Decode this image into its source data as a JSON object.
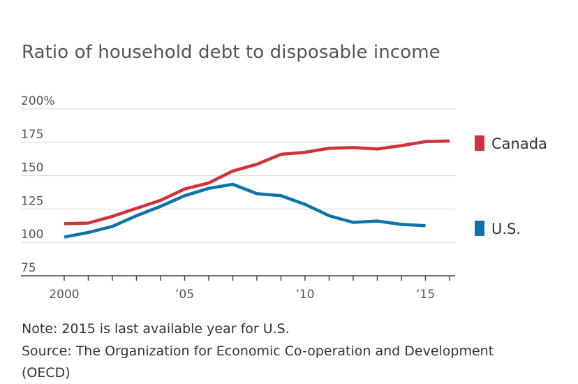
{
  "chart_data": {
    "type": "line",
    "title": "Ratio of household debt to disposable income",
    "xlabel": "",
    "ylabel": "",
    "xlim": [
      2000,
      2016
    ],
    "ylim": [
      75,
      200
    ],
    "y_ticks": [
      {
        "value": 200,
        "label": "200%"
      },
      {
        "value": 175,
        "label": "175"
      },
      {
        "value": 150,
        "label": "150"
      },
      {
        "value": 125,
        "label": "125"
      },
      {
        "value": 100,
        "label": "100"
      },
      {
        "value": 75,
        "label": "75"
      }
    ],
    "x_ticks": [
      {
        "value": 2000,
        "label": "2000"
      },
      {
        "value": 2005,
        "label": "’05"
      },
      {
        "value": 2010,
        "label": "’10"
      },
      {
        "value": 2015,
        "label": "’15"
      }
    ],
    "grid": true,
    "legend": "right",
    "series": [
      {
        "name": "Canada",
        "color": "#d0323c",
        "x": [
          2000,
          2001,
          2002,
          2003,
          2004,
          2005,
          2006,
          2007,
          2008,
          2009,
          2010,
          2011,
          2012,
          2013,
          2014,
          2015,
          2016
        ],
        "values": [
          114,
          114.5,
          119.5,
          125.5,
          131.5,
          140,
          144.5,
          153.5,
          158.5,
          166,
          167.5,
          170.5,
          171,
          170,
          172.5,
          175.5,
          176
        ]
      },
      {
        "name": "U.S.",
        "color": "#0b74aa",
        "x": [
          2000,
          2001,
          2002,
          2003,
          2004,
          2005,
          2006,
          2007,
          2008,
          2009,
          2010,
          2011,
          2012,
          2013,
          2014,
          2015
        ],
        "values": [
          104,
          107.5,
          112,
          120,
          127,
          135,
          140.5,
          143.5,
          136.5,
          135,
          128.5,
          120,
          115,
          116,
          113.5,
          112.5
        ]
      }
    ]
  },
  "notes": {
    "note": "Note: 2015 is last available year for U.S.",
    "source_line1": "Source: The Organization for Economic Co-operation and Development",
    "source_line2": "(OECD)"
  }
}
